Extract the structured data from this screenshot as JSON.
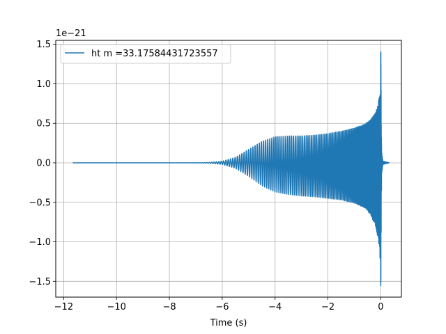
{
  "chart_data": {
    "type": "line",
    "title": "",
    "xlabel": "Time (s)",
    "ylabel": "",
    "y_offset_text": "1e−21",
    "xlim": [
      -12.3,
      0.78
    ],
    "ylim": [
      -1.7,
      1.55
    ],
    "xticks": [
      -12,
      -10,
      -8,
      -6,
      -4,
      -2,
      0
    ],
    "xtick_labels": [
      "−12",
      "−10",
      "−8",
      "−6",
      "−4",
      "−2",
      "0"
    ],
    "yticks": [
      -1.5,
      -1.0,
      -0.5,
      0.0,
      0.5,
      1.0,
      1.5
    ],
    "ytick_labels": [
      "−1.5",
      "−1.0",
      "−0.5",
      "0.0",
      "0.5",
      "1.0",
      "1.5"
    ],
    "grid": true,
    "legend_position": "upper-left",
    "series": [
      {
        "name": "ht m =33.17584431723557",
        "color": "#1f77b4",
        "kind": "chirp-waveform",
        "x_start": -11.65,
        "x_merger": 0.0,
        "x_end": 0.32,
        "envelope": {
          "t": [
            -11.65,
            -7.0,
            -6.5,
            -6.0,
            -5.5,
            -5.0,
            -4.5,
            -4.0,
            -3.5,
            -3.0,
            -2.5,
            -2.0,
            -1.5,
            -1.0,
            -0.6,
            -0.4,
            -0.2,
            -0.1,
            -0.05,
            -0.02,
            0.0,
            0.03,
            0.08,
            0.32
          ],
          "upper": [
            0.0,
            0.0,
            0.005,
            0.02,
            0.07,
            0.17,
            0.27,
            0.33,
            0.34,
            0.34,
            0.35,
            0.37,
            0.4,
            0.44,
            0.49,
            0.54,
            0.63,
            0.75,
            0.88,
            1.05,
            1.41,
            0.15,
            0.02,
            0.0
          ],
          "lower": [
            0.0,
            0.0,
            -0.005,
            -0.02,
            -0.07,
            -0.17,
            -0.29,
            -0.37,
            -0.4,
            -0.42,
            -0.43,
            -0.45,
            -0.47,
            -0.51,
            -0.57,
            -0.65,
            -0.8,
            -0.97,
            -1.1,
            -1.25,
            -1.56,
            -0.15,
            -0.02,
            0.0
          ]
        }
      }
    ]
  }
}
